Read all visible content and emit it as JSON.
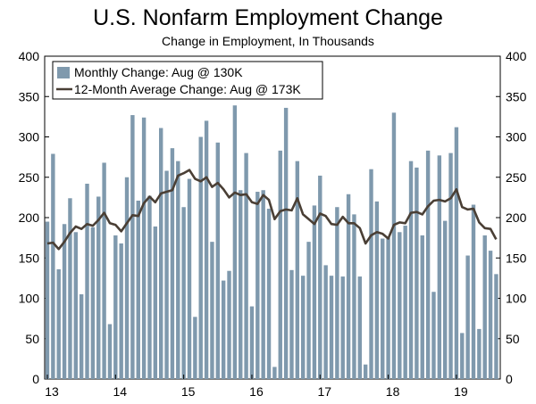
{
  "chart_data": {
    "type": "bar",
    "title": "U.S. Nonfarm Employment Change",
    "subtitle": "Change in Employment, In Thousands",
    "xlabel": "",
    "ylabel": "",
    "ylim": [
      0,
      400
    ],
    "yticks": [
      0,
      50,
      100,
      150,
      200,
      250,
      300,
      350,
      400
    ],
    "xtick_labels": [
      "13",
      "14",
      "15",
      "16",
      "17",
      "18",
      "19"
    ],
    "start": "2013-01",
    "legend_position": "top-left",
    "grid": false,
    "colors": {
      "bar": "#7f99ad",
      "line": "#4a3f35"
    },
    "series": [
      {
        "name": "Monthly Change: Aug @ 130K",
        "type": "bar",
        "values": [
          195,
          279,
          136,
          192,
          224,
          182,
          105,
          242,
          188,
          226,
          268,
          68,
          178,
          168,
          250,
          327,
          221,
          324,
          227,
          189,
          311,
          258,
          286,
          270,
          213,
          248,
          77,
          300,
          320,
          170,
          293,
          122,
          134,
          339,
          234,
          280,
          90,
          232,
          234,
          211,
          15,
          283,
          336,
          135,
          270,
          128,
          170,
          215,
          252,
          141,
          128,
          213,
          127,
          229,
          204,
          127,
          18,
          260,
          220,
          174,
          175,
          330,
          182,
          190,
          270,
          262,
          178,
          283,
          108,
          277,
          196,
          280,
          312,
          57,
          153,
          216,
          62,
          178,
          159,
          130
        ]
      },
      {
        "name": "12-Month Average Change: Aug @ 173K",
        "type": "line",
        "values": [
          168,
          169,
          161,
          170,
          181,
          189,
          186,
          192,
          190,
          197,
          206,
          193,
          191,
          183,
          193,
          203,
          202,
          218,
          226,
          219,
          230,
          232,
          234,
          252,
          255,
          259,
          248,
          245,
          250,
          238,
          243,
          235,
          225,
          231,
          228,
          229,
          219,
          217,
          228,
          222,
          198,
          208,
          210,
          209,
          224,
          204,
          198,
          192,
          205,
          202,
          192,
          191,
          201,
          193,
          193,
          187,
          168,
          178,
          182,
          180,
          174,
          191,
          194,
          193,
          206,
          207,
          204,
          214,
          221,
          222,
          220,
          224,
          235,
          213,
          210,
          211,
          194,
          187,
          186,
          173
        ]
      }
    ]
  }
}
